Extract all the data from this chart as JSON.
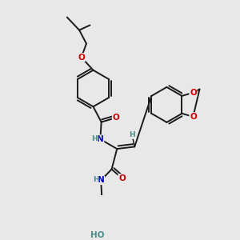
{
  "background_color": "#e8e8e8",
  "bond_color": "#1a1a1a",
  "atom_colors": {
    "O": "#cc0000",
    "N": "#0000bb",
    "H": "#4a8a8a",
    "C": "#1a1a1a"
  },
  "figsize": [
    3.0,
    3.0
  ],
  "dpi": 100
}
